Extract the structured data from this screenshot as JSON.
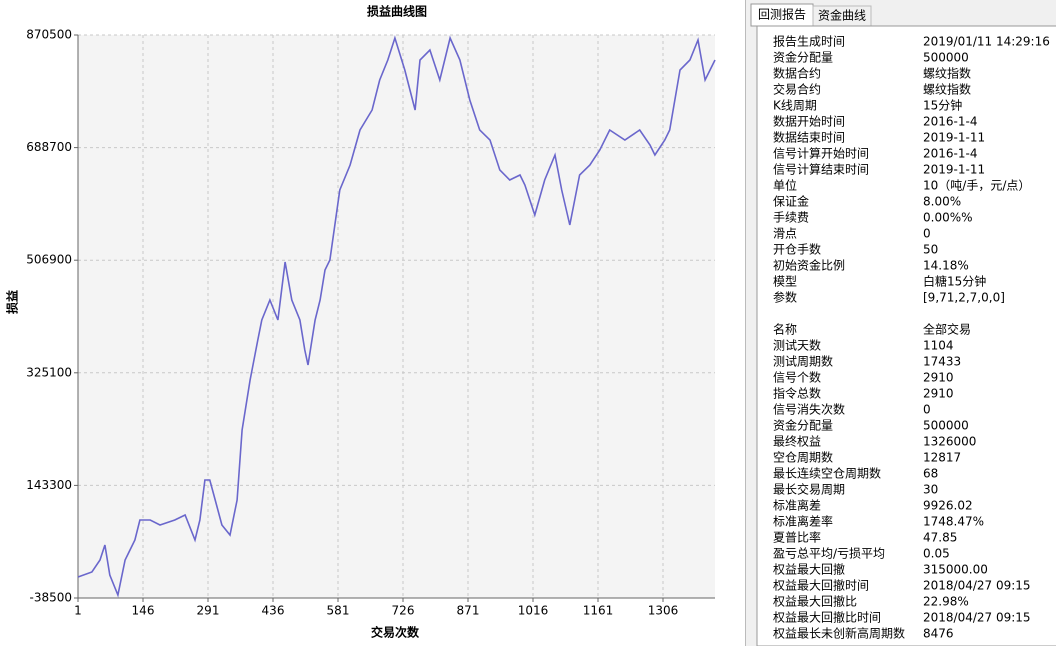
{
  "chart_data": {
    "type": "line",
    "title": "损益曲线图",
    "x_label": "交易次数",
    "y_label": "损益",
    "x": [
      1,
      32,
      50,
      61,
      72,
      90,
      106,
      128,
      139,
      162,
      184,
      217,
      240,
      262,
      273,
      284,
      295,
      307,
      322,
      340,
      356,
      367,
      385,
      402,
      411,
      429,
      447,
      463,
      478,
      496,
      507,
      514,
      530,
      541,
      552,
      563,
      585,
      608,
      630,
      657,
      674,
      692,
      708,
      730,
      753,
      764,
      786,
      808,
      831,
      853,
      875,
      897,
      920,
      942,
      964,
      987,
      998,
      1020,
      1042,
      1065,
      1080,
      1098,
      1109,
      1120,
      1143,
      1165,
      1187,
      1221,
      1254,
      1277,
      1288,
      1310,
      1321,
      1344,
      1366,
      1384,
      1400,
      1422
    ],
    "values": [
      -4600,
      3500,
      22800,
      47100,
      -1400,
      -33700,
      22800,
      55100,
      87400,
      87400,
      79300,
      87400,
      95500,
      55100,
      87400,
      152000,
      152000,
      119700,
      79300,
      63200,
      119700,
      232700,
      313500,
      378000,
      410300,
      442600,
      410300,
      504000,
      442600,
      410300,
      361900,
      337700,
      410300,
      442600,
      491100,
      507200,
      620200,
      660600,
      717100,
      749400,
      797800,
      830100,
      865700,
      814000,
      749400,
      830100,
      846300,
      797800,
      865700,
      830100,
      765600,
      717100,
      701000,
      652500,
      636400,
      644500,
      628300,
      579900,
      636400,
      676700,
      620200,
      563700,
      604100,
      644500,
      660600,
      684800,
      717100,
      701000,
      717100,
      692900,
      676700,
      701000,
      717100,
      814000,
      830100,
      862400,
      797800,
      830100
    ],
    "color": "#6a67cc",
    "xlim": [
      1,
      1422
    ],
    "xticks": [
      1,
      146,
      291,
      436,
      581,
      726,
      871,
      1016,
      1161,
      1306
    ],
    "ylim": [
      -38500,
      870500
    ],
    "yticks": [
      -38500,
      143300,
      325100,
      506900,
      688700,
      870500
    ],
    "grid": true
  },
  "panel": {
    "tabs": [
      "回测报告",
      "资金曲线"
    ],
    "section1": [
      [
        "报告生成时间",
        "2019/01/11 14:29:16"
      ],
      [
        "资金分配量",
        "500000"
      ],
      [
        "数据合约",
        "螺纹指数"
      ],
      [
        "交易合约",
        "螺纹指数"
      ],
      [
        "K线周期",
        "15分钟"
      ],
      [
        "数据开始时间",
        "2016-1-4"
      ],
      [
        "数据结束时间",
        "2019-1-11"
      ],
      [
        "信号计算开始时间",
        "2016-1-4"
      ],
      [
        "信号计算结束时间",
        "2019-1-11"
      ],
      [
        "单位",
        "10（吨/手，元/点）"
      ],
      [
        "保证金",
        "8.00%"
      ],
      [
        "手续费",
        "0.00%%"
      ],
      [
        "滑点",
        "0"
      ],
      [
        "开仓手数",
        "50"
      ],
      [
        "初始资金比例",
        "14.18%"
      ],
      [
        "模型",
        "白糖15分钟"
      ],
      [
        "参数",
        "[9,71,2,7,0,0]"
      ]
    ],
    "section2": [
      [
        "名称",
        "全部交易"
      ],
      [
        "测试天数",
        "1104"
      ],
      [
        "测试周期数",
        "17433"
      ],
      [
        "信号个数",
        "2910"
      ],
      [
        "指令总数",
        "2910"
      ],
      [
        "信号消失次数",
        "0"
      ],
      [
        "资金分配量",
        "500000"
      ],
      [
        "最终权益",
        "1326000"
      ],
      [
        "空仓周期数",
        "12817"
      ],
      [
        "最长连续空仓周期数",
        "68"
      ],
      [
        "最长交易周期",
        "30"
      ],
      [
        "标准离差",
        "9926.02"
      ],
      [
        "标准离差率",
        "1748.47%"
      ],
      [
        "夏普比率",
        "47.85"
      ],
      [
        "盈亏总平均/亏损平均",
        "0.05"
      ],
      [
        "权益最大回撤",
        "315000.00"
      ],
      [
        "权益最大回撤时间",
        "2018/04/27 09:15"
      ],
      [
        "权益最大回撤比",
        "22.98%"
      ],
      [
        "权益最大回撤比时间",
        "2018/04/27 09:15"
      ],
      [
        "权益最长未创新高周期数",
        "8476"
      ]
    ]
  }
}
